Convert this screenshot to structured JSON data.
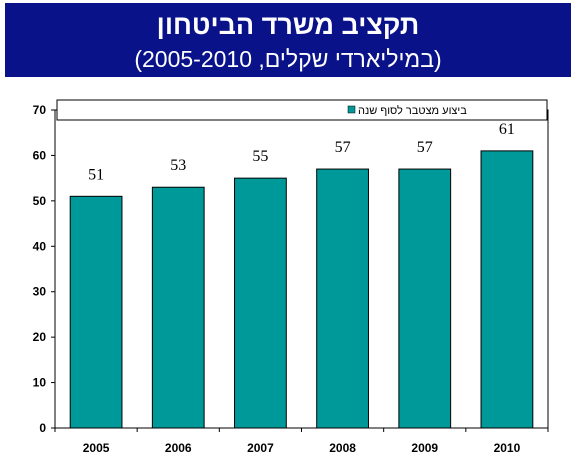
{
  "title": "תקציב משרד הביטחון",
  "subtitle": "(במיליארדי שקלים, 2005-2010)",
  "chart_data": {
    "type": "bar",
    "categories": [
      "2005",
      "2006",
      "2007",
      "2008",
      "2009",
      "2010"
    ],
    "series": [
      {
        "name": "ביצוע מצטבר לסוף שנה",
        "values": [
          51,
          53,
          55,
          57,
          57,
          61
        ]
      }
    ],
    "data_labels": [
      "51",
      "53",
      "55",
      "57",
      "57",
      "61"
    ],
    "y_ticks": [
      0,
      10,
      20,
      30,
      40,
      50,
      60,
      70
    ],
    "ylim": [
      0,
      70
    ],
    "xlabel": "",
    "ylabel": "",
    "grid": false,
    "legend_position": "top",
    "colors": {
      "bar": "#009999",
      "banner": "#0a128a"
    }
  }
}
